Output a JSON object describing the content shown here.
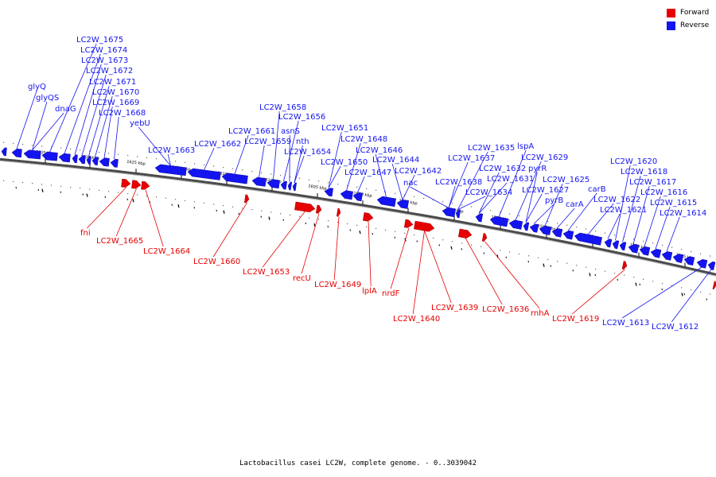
{
  "colors": {
    "forward": "#e60000",
    "reverse": "#1414f0",
    "backbone": "#555555"
  },
  "legend": [
    {
      "label": "Forward",
      "color": "#e60000"
    },
    {
      "label": "Reverse",
      "color": "#1414f0"
    }
  ],
  "caption": "Lactobacillus casei LC2W, complete genome. - 0..3039042",
  "scale_labels": [
    "1635 kbp",
    "1630 kbp",
    "1625 kbp",
    "1620 kbp",
    "1615 kbp",
    "1610 kbp",
    "1605 kbp",
    "1600 kbp",
    "1595 kbp",
    "1590 kbp",
    "1585 kbp",
    "1580 kbp",
    "1575 kbp",
    "1570 kbp",
    "1565 kbp"
  ],
  "reverse_labels": [
    "glyQ",
    "glyQS",
    "dnaG",
    "LC2W_1675",
    "LC2W_1674",
    "LC2W_1673",
    "LC2W_1672",
    "LC2W_1671",
    "LC2W_1670",
    "LC2W_1669",
    "LC2W_1668",
    "yebU",
    "LC2W_1663",
    "LC2W_1662",
    "LC2W_1661",
    "LC2W_1659",
    "LC2W_1658",
    "LC2W_1656",
    "asnS",
    "nth",
    "LC2W_1654",
    "LC2W_1651",
    "LC2W_1650",
    "LC2W_1648",
    "LC2W_1647",
    "LC2W_1646",
    "LC2W_1644",
    "LC2W_1642",
    "nac",
    "LC2W_1638",
    "LC2W_1637",
    "LC2W_1635",
    "LC2W_1634",
    "LC2W_1632",
    "LC2W_1631",
    "lspA",
    "LC2W_1629",
    "pyrR",
    "LC2W_1627",
    "pyrB",
    "LC2W_1625",
    "carA",
    "carB",
    "LC2W_1622",
    "LC2W_1621",
    "LC2W_1620",
    "LC2W_1618",
    "LC2W_1617",
    "LC2W_1616",
    "LC2W_1615",
    "LC2W_1614",
    "LC2W_1613",
    "LC2W_1612"
  ],
  "forward_labels": [
    "fni",
    "LC2W_1665",
    "LC2W_1664",
    "LC2W_1660",
    "LC2W_1653",
    "recU",
    "LC2W_1649",
    "lplA",
    "nrdF",
    "LC2W_1640",
    "LC2W_1639",
    "LC2W_1636",
    "rnhA",
    "LC2W_1619"
  ]
}
